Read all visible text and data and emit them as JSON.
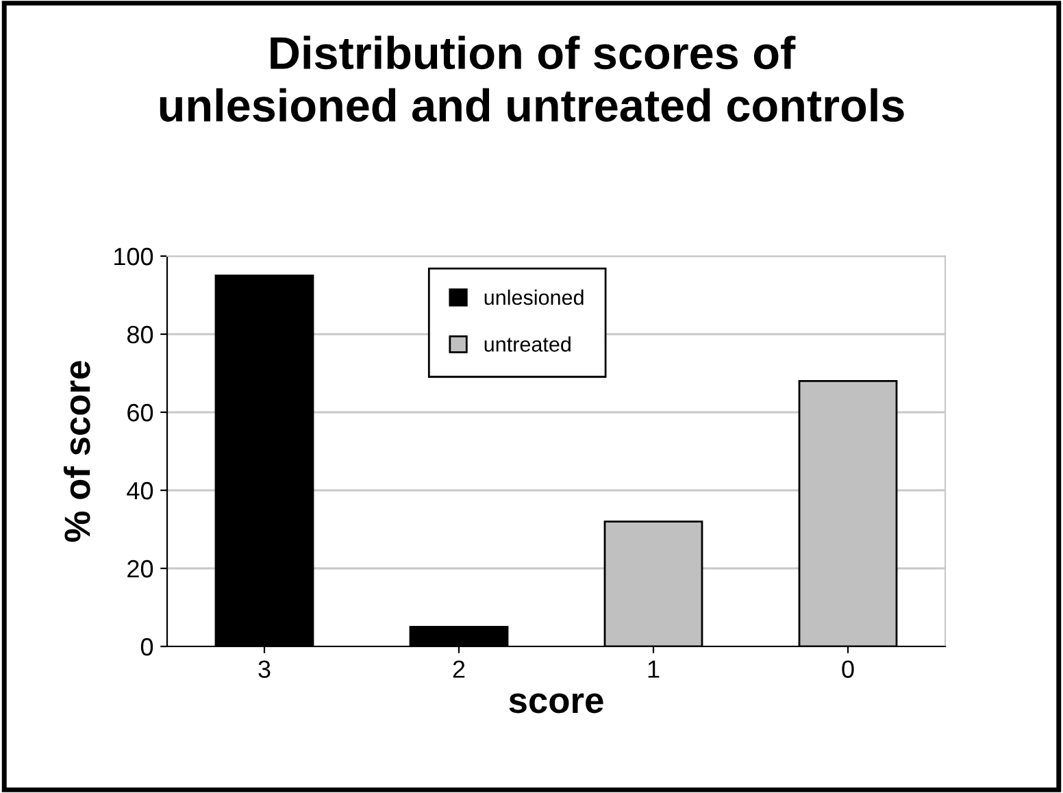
{
  "chart_data": {
    "type": "bar",
    "title": "Distribution of scores of\nunlesioned and untreated controls",
    "xlabel": "score",
    "ylabel": "% of score",
    "categories": [
      "3",
      "2",
      "1",
      "0"
    ],
    "series": [
      {
        "name": "unlesioned",
        "color": "#000000",
        "values": [
          95,
          5,
          null,
          null
        ]
      },
      {
        "name": "untreated",
        "color": "#c0c0c0",
        "values": [
          null,
          null,
          32,
          68
        ]
      }
    ],
    "ylim": [
      0,
      100
    ],
    "yticks": [
      0,
      20,
      40,
      60,
      80,
      100
    ],
    "grid": "y",
    "legend": "top"
  }
}
